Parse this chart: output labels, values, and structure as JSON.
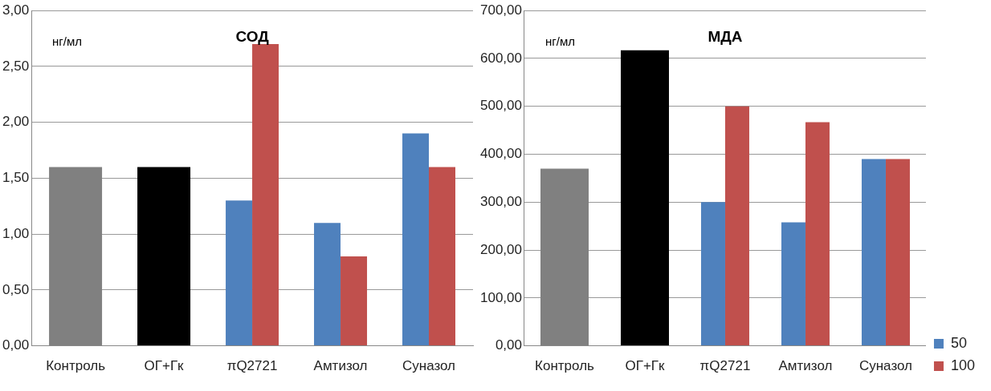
{
  "chart_data": [
    {
      "type": "bar",
      "title": "СОД",
      "ylabel": "нг/мл",
      "categories": [
        "Контроль",
        "ОГ+Гк",
        "πQ2721",
        "Амтизол",
        "Суназол"
      ],
      "series": [
        {
          "color": "#808080",
          "values": [
            1.6,
            null,
            null,
            null,
            null
          ]
        },
        {
          "color": "#000000",
          "values": [
            null,
            1.6,
            null,
            null,
            null
          ]
        },
        {
          "color": "#4f81bd",
          "values": [
            null,
            null,
            1.3,
            1.1,
            1.9
          ]
        },
        {
          "color": "#c0504d",
          "values": [
            null,
            null,
            2.7,
            0.8,
            1.6
          ]
        }
      ],
      "ylim": [
        0,
        3
      ],
      "yticks": [
        {
          "value": 0,
          "label": "0,00"
        },
        {
          "value": 0.5,
          "label": "0,50"
        },
        {
          "value": 1,
          "label": "1,00"
        },
        {
          "value": 1.5,
          "label": "1,50"
        },
        {
          "value": 2,
          "label": "2,00"
        },
        {
          "value": 2.5,
          "label": "2,50"
        },
        {
          "value": 3,
          "label": "3,00"
        }
      ],
      "grid": "y",
      "legend": false
    },
    {
      "type": "bar",
      "title": "МДА",
      "ylabel": "нг/мл",
      "categories": [
        "Контроль",
        "ОГ+Гк",
        "πQ2721",
        "Амтизол",
        "Суназол"
      ],
      "series": [
        {
          "color": "#808080",
          "values": [
            370,
            null,
            null,
            null,
            null
          ]
        },
        {
          "color": "#000000",
          "values": [
            null,
            617,
            null,
            null,
            null
          ]
        },
        {
          "name": "50",
          "color": "#4f81bd",
          "values": [
            null,
            null,
            300,
            258,
            390
          ]
        },
        {
          "name": "100",
          "color": "#c0504d",
          "values": [
            null,
            null,
            500,
            467,
            390
          ]
        }
      ],
      "ylim": [
        0,
        700
      ],
      "yticks": [
        {
          "value": 0,
          "label": "0,00"
        },
        {
          "value": 100,
          "label": "100,00"
        },
        {
          "value": 200,
          "label": "200,00"
        },
        {
          "value": 300,
          "label": "300,00"
        },
        {
          "value": 400,
          "label": "400,00"
        },
        {
          "value": 500,
          "label": "500,00"
        },
        {
          "value": 600,
          "label": "600,00"
        },
        {
          "value": 700,
          "label": "700,00"
        }
      ],
      "grid": "y",
      "legend": "bottom right"
    }
  ]
}
